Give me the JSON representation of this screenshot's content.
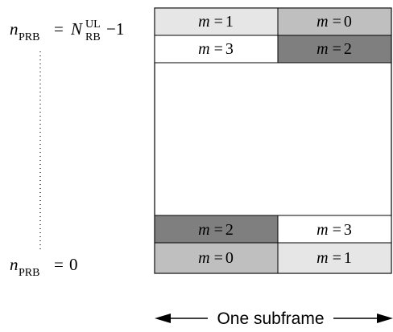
{
  "labels": {
    "top": {
      "var": "n",
      "var_sub": "PRB",
      "eq": "=",
      "rhs_var": "N",
      "rhs_sup": "UL",
      "rhs_sub": "RB",
      "rhs_tail": "−1"
    },
    "bottom": {
      "var": "n",
      "var_sub": "PRB",
      "eq": "=",
      "rhs": "0"
    }
  },
  "cells": {
    "top_row1": [
      {
        "m": "m",
        "eq": "=",
        "val": "1",
        "shade": "#e6e6e6"
      },
      {
        "m": "m",
        "eq": "=",
        "val": "0",
        "shade": "#bfbfbf"
      }
    ],
    "top_row2": [
      {
        "m": "m",
        "eq": "=",
        "val": "3",
        "shade": "#ffffff"
      },
      {
        "m": "m",
        "eq": "=",
        "val": "2",
        "shade": "#7f7f7f"
      }
    ],
    "bottom_row1": [
      {
        "m": "m",
        "eq": "=",
        "val": "2",
        "shade": "#7f7f7f"
      },
      {
        "m": "m",
        "eq": "=",
        "val": "3",
        "shade": "#ffffff"
      }
    ],
    "bottom_row2": [
      {
        "m": "m",
        "eq": "=",
        "val": "0",
        "shade": "#bfbfbf"
      },
      {
        "m": "m",
        "eq": "=",
        "val": "1",
        "shade": "#e6e6e6"
      }
    ]
  },
  "footer": {
    "label": "One subframe"
  }
}
